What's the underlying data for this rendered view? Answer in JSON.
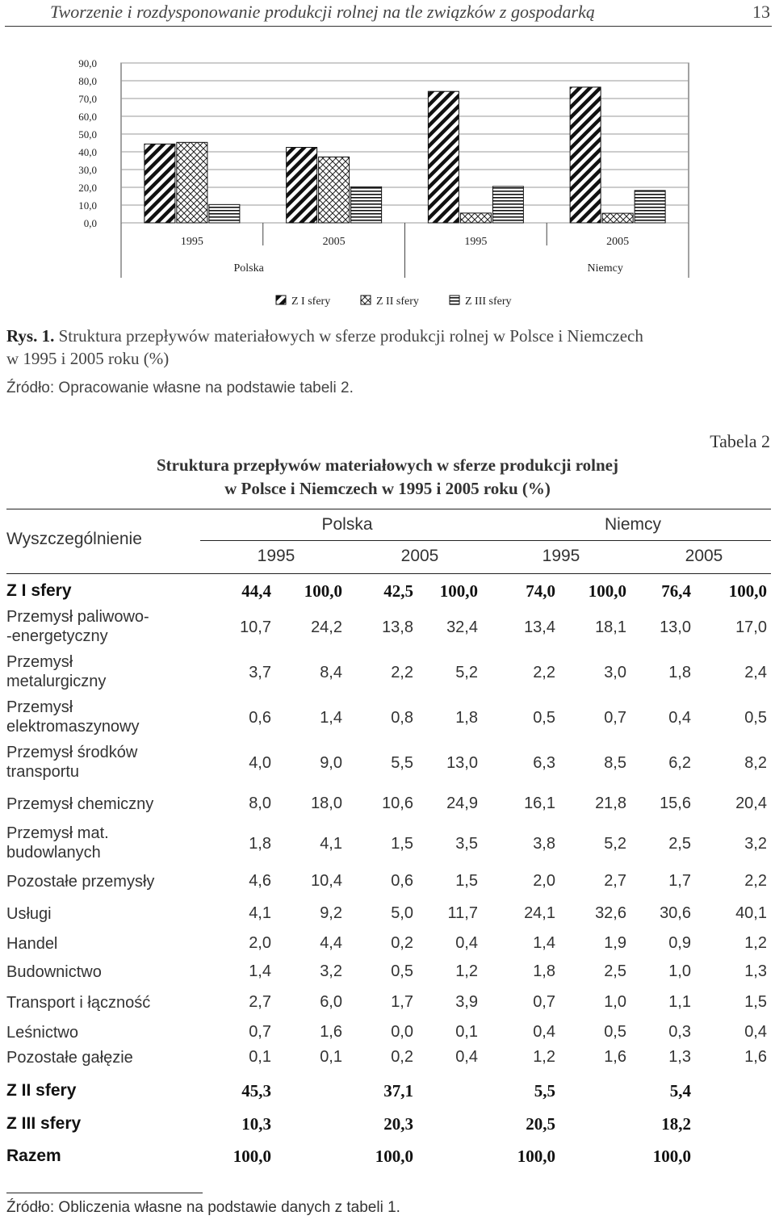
{
  "header": {
    "title": "Tworzenie i rozdysponowanie produkcji rolnej na tle związków z gospodarką",
    "page_number": "13"
  },
  "figure": {
    "label": "Rys. 1.",
    "caption_line1": "Struktura przepływów materiałowych w sferze produkcji rolnej w Polsce i Niemczech",
    "caption_line2": "w 1995 i 2005 roku (%)",
    "source": "Źródło: Opracowanie własne na podstawie tabeli 2."
  },
  "chart_data": {
    "type": "bar",
    "categories": [
      "1995",
      "2005",
      "1995",
      "2005"
    ],
    "groups": [
      {
        "label": "Polska",
        "categories": [
          "1995",
          "2005"
        ]
      },
      {
        "label": "Niemcy",
        "categories": [
          "1995",
          "2005"
        ]
      }
    ],
    "series": [
      {
        "name": "Z I sfery",
        "values": [
          44.4,
          42.5,
          74.0,
          76.4
        ],
        "pattern": "diagonal-hatch"
      },
      {
        "name": "Z II sfery",
        "values": [
          45.3,
          37.1,
          5.5,
          5.4
        ],
        "pattern": "crosshatch"
      },
      {
        "name": "Z III sfery",
        "values": [
          10.3,
          20.3,
          20.5,
          18.2
        ],
        "pattern": "horizontal-lines"
      }
    ],
    "ylim": [
      0,
      90
    ],
    "yticks": [
      "0,0",
      "10,0",
      "20,0",
      "30,0",
      "40,0",
      "50,0",
      "60,0",
      "70,0",
      "80,0",
      "90,0"
    ],
    "grid": true,
    "legend_position": "bottom",
    "title": "",
    "xlabel": "",
    "ylabel": ""
  },
  "table": {
    "label": "Tabela 2",
    "title_line1": "Struktura przepływów materiałowych w sferze produkcji rolnej",
    "title_line2": "w Polsce i Niemczech w 1995 i 2005 roku (%)",
    "stub_header": "Wyszczególnienie",
    "country_headers": [
      "Polska",
      "Niemcy"
    ],
    "year_headers": [
      "1995",
      "2005",
      "1995",
      "2005"
    ],
    "rows": [
      {
        "label": [
          "Z I sfery"
        ],
        "bold": true,
        "values": [
          "44,4",
          "100,0",
          "42,5",
          "100,0",
          "74,0",
          "100,0",
          "76,4",
          "100,0"
        ]
      },
      {
        "label": [
          "Przemysł paliwowo-",
          "-energetyczny"
        ],
        "bold": false,
        "values": [
          "10,7",
          "24,2",
          "13,8",
          "32,4",
          "13,4",
          "18,1",
          "13,0",
          "17,0"
        ]
      },
      {
        "label": [
          "Przemysł",
          "metalurgiczny"
        ],
        "bold": false,
        "values": [
          "3,7",
          "8,4",
          "2,2",
          "5,2",
          "2,2",
          "3,0",
          "1,8",
          "2,4"
        ]
      },
      {
        "label": [
          "Przemysł",
          "elektromaszynowy"
        ],
        "bold": false,
        "values": [
          "0,6",
          "1,4",
          "0,8",
          "1,8",
          "0,5",
          "0,7",
          "0,4",
          "0,5"
        ]
      },
      {
        "label": [
          "Przemysł środków",
          "transportu"
        ],
        "bold": false,
        "values": [
          "4,0",
          "9,0",
          "5,5",
          "13,0",
          "6,3",
          "8,5",
          "6,2",
          "8,2"
        ]
      },
      {
        "label": [
          "Przemysł chemiczny"
        ],
        "bold": false,
        "values": [
          "8,0",
          "18,0",
          "10,6",
          "24,9",
          "16,1",
          "21,8",
          "15,6",
          "20,4"
        ]
      },
      {
        "label": [
          "Przemysł mat.",
          "budowlanych"
        ],
        "bold": false,
        "values": [
          "1,8",
          "4,1",
          "1,5",
          "3,5",
          "3,8",
          "5,2",
          "2,5",
          "3,2"
        ]
      },
      {
        "label": [
          "Pozostałe przemysły"
        ],
        "bold": false,
        "values": [
          "4,6",
          "10,4",
          "0,6",
          "1,5",
          "2,0",
          "2,7",
          "1,7",
          "2,2"
        ]
      },
      {
        "label": [
          "Usługi"
        ],
        "bold": false,
        "values": [
          "4,1",
          "9,2",
          "5,0",
          "11,7",
          "24,1",
          "32,6",
          "30,6",
          "40,1"
        ]
      },
      {
        "label": [
          "Handel"
        ],
        "bold": false,
        "values": [
          "2,0",
          "4,4",
          "0,2",
          "0,4",
          "1,4",
          "1,9",
          "0,9",
          "1,2"
        ]
      },
      {
        "label": [
          "Budownictwo"
        ],
        "bold": false,
        "values": [
          "1,4",
          "3,2",
          "0,5",
          "1,2",
          "1,8",
          "2,5",
          "1,0",
          "1,3"
        ]
      },
      {
        "label": [
          "Transport i łączność"
        ],
        "bold": false,
        "values": [
          "2,7",
          "6,0",
          "1,7",
          "3,9",
          "0,7",
          "1,0",
          "1,1",
          "1,5"
        ]
      },
      {
        "label": [
          "Leśnictwo"
        ],
        "bold": false,
        "values": [
          "0,7",
          "1,6",
          "0,0",
          "0,1",
          "0,4",
          "0,5",
          "0,3",
          "0,4"
        ]
      },
      {
        "label": [
          "Pozostałe gałęzie"
        ],
        "bold": false,
        "values": [
          "0,1",
          "0,1",
          "0,2",
          "0,4",
          "1,2",
          "1,6",
          "1,3",
          "1,6"
        ]
      },
      {
        "label": [
          "Z II sfery"
        ],
        "bold": true,
        "values": [
          "45,3",
          "",
          "37,1",
          "",
          "5,5",
          "",
          "5,4",
          ""
        ]
      },
      {
        "label": [
          "Z III sfery"
        ],
        "bold": true,
        "values": [
          "10,3",
          "",
          "20,3",
          "",
          "20,5",
          "",
          "18,2",
          ""
        ]
      },
      {
        "label": [
          "Razem"
        ],
        "bold": true,
        "values": [
          "100,0",
          "",
          "100,0",
          "",
          "100,0",
          "",
          "100,0",
          ""
        ]
      }
    ],
    "source": "Źródło: Obliczenia własne na podstawie danych z tabeli 1."
  }
}
